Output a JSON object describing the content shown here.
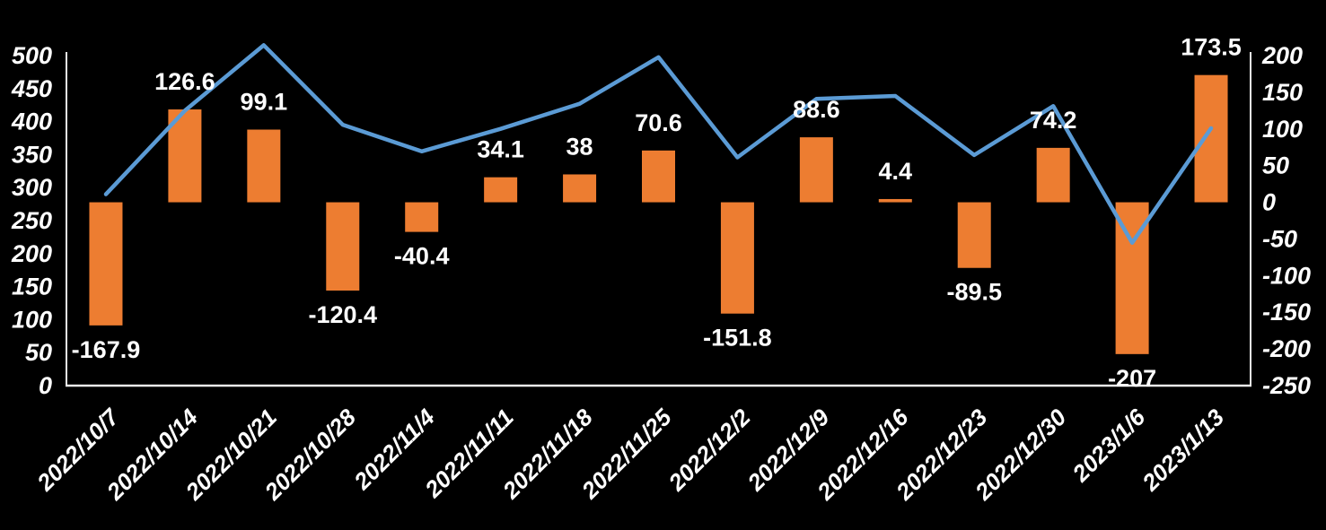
{
  "chart_data": {
    "type": "combo",
    "title": "",
    "grid": false,
    "legend": false,
    "background_color": "#000000",
    "text_color": "#FFFFFF",
    "axis_line_color": "#ECECEC",
    "categories": [
      "2022/10/7",
      "2022/10/14",
      "2022/10/21",
      "2022/10/28",
      "2022/11/4",
      "2022/11/11",
      "2022/11/18",
      "2022/11/25",
      "2022/12/2",
      "2022/12/9",
      "2022/12/16",
      "2022/12/23",
      "2022/12/30",
      "2023/1/6",
      "2023/1/13"
    ],
    "series": [
      {
        "name": "bar-series",
        "type": "bar",
        "axis": "right",
        "color": "#ED7D31",
        "values": [
          -167.9,
          126.6,
          99.1,
          -120.4,
          -40.4,
          34.1,
          38,
          70.6,
          -151.8,
          88.6,
          4.4,
          -89.5,
          74.2,
          -207,
          173.5
        ],
        "data_labels": [
          "-167.9",
          "126.6",
          "99.1",
          "-120.4",
          "-40.4",
          "34.1",
          "38",
          "70.6",
          "-151.8",
          "88.6",
          "4.4",
          "-89.5",
          "74.2",
          "-207",
          "173.5"
        ]
      },
      {
        "name": "line-series",
        "type": "line",
        "axis": "left",
        "color": "#5B9BD5",
        "values": [
          290.0,
          416.6,
          515.7,
          395.3,
          354.9,
          389.0,
          427.0,
          497.6,
          345.8,
          434.4,
          438.8,
          349.3,
          423.5,
          216.5,
          390.0
        ],
        "data_labels": []
      }
    ],
    "left_axis": {
      "min": 0,
      "max": 500,
      "step": 50,
      "tick_labels": [
        "500",
        "450",
        "400",
        "350",
        "300",
        "250",
        "200",
        "150",
        "100",
        "50",
        "0"
      ]
    },
    "right_axis": {
      "min": -250,
      "max": 200,
      "step": 50,
      "tick_labels": [
        "200",
        "150",
        "100",
        "50",
        "0",
        "-50",
        "-100",
        "-150",
        "-200",
        "-250"
      ]
    }
  }
}
